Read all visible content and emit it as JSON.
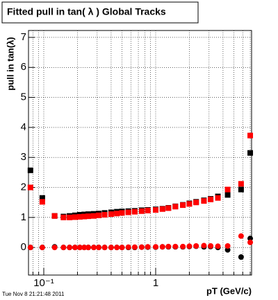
{
  "chart_data": {
    "type": "scatter",
    "title": "Fitted pull in tan( λ )  Global Tracks",
    "y_label": "pull in tan(λ)",
    "x_label": "pT (GeV/c)",
    "footer": "Tue Nov  8 21:21:48 2011",
    "log_x": true,
    "grid": true,
    "xlim": [
      0.073,
      7.2
    ],
    "ylim": [
      -0.92,
      7.23
    ],
    "xticks": [
      {
        "value": 0.1,
        "label": "10⁻¹"
      },
      1
    ],
    "xminorticks": [
      0.08,
      0.09,
      0.2,
      0.3,
      0.4,
      0.5,
      0.6,
      0.7,
      0.8,
      0.9,
      2,
      3,
      4,
      5,
      6,
      7
    ],
    "yticks": [
      0,
      1,
      2,
      3,
      4,
      5,
      6,
      7
    ],
    "x": [
      0.076,
      0.097,
      0.125,
      0.15,
      0.17,
      0.19,
      0.21,
      0.23,
      0.25,
      0.28,
      0.31,
      0.35,
      0.4,
      0.45,
      0.5,
      0.57,
      0.65,
      0.75,
      0.85,
      1.0,
      1.15,
      1.3,
      1.5,
      1.75,
      2.0,
      2.3,
      2.7,
      3.1,
      3.6,
      4.4,
      5.8,
      7.0
    ],
    "series": [
      {
        "color": "#000000",
        "marker": "square",
        "values": [
          2.57,
          1.65,
          1.05,
          1.03,
          1.05,
          1.07,
          1.09,
          1.1,
          1.11,
          1.12,
          1.13,
          1.15,
          1.17,
          1.19,
          1.2,
          1.21,
          1.22,
          1.24,
          1.25,
          1.27,
          1.29,
          1.32,
          1.37,
          1.42,
          1.47,
          1.52,
          1.57,
          1.62,
          1.7,
          1.75,
          1.93,
          3.15
        ]
      },
      {
        "color": "#ff0000",
        "marker": "square",
        "values": [
          2.0,
          1.52,
          1.05,
          1.0,
          1.0,
          1.01,
          1.02,
          1.03,
          1.04,
          1.05,
          1.07,
          1.09,
          1.11,
          1.13,
          1.15,
          1.17,
          1.19,
          1.21,
          1.23,
          1.25,
          1.28,
          1.31,
          1.36,
          1.41,
          1.45,
          1.5,
          1.55,
          1.6,
          1.65,
          1.93,
          2.12,
          3.73
        ]
      },
      {
        "color": "#000000",
        "marker": "circle",
        "values": [
          0.0,
          0.0,
          0.02,
          0.0,
          0.0,
          0.0,
          0.0,
          0.0,
          0.0,
          0.0,
          0.0,
          0.0,
          0.0,
          0.0,
          0.0,
          0.0,
          0.0,
          0.01,
          0.01,
          0.01,
          0.02,
          0.02,
          0.02,
          0.02,
          0.03,
          0.04,
          0.02,
          0.03,
          0.0,
          -0.08,
          -0.32,
          0.3
        ]
      },
      {
        "color": "#ff0000",
        "marker": "circle",
        "values": [
          0.0,
          0.0,
          0.0,
          0.0,
          0.0,
          0.0,
          0.0,
          0.0,
          0.0,
          0.0,
          0.0,
          0.0,
          0.0,
          0.0,
          0.0,
          0.01,
          0.01,
          0.01,
          0.02,
          0.02,
          0.02,
          0.03,
          0.03,
          0.03,
          0.04,
          0.05,
          0.06,
          0.05,
          0.04,
          0.05,
          0.38,
          0.17
        ]
      }
    ]
  }
}
